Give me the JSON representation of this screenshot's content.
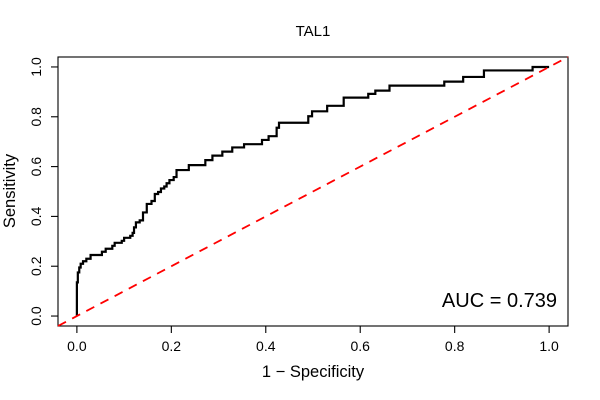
{
  "chart_data": {
    "type": "line",
    "subtype": "roc-step-curve",
    "title": "TAL1",
    "xlabel": "1 − Specificity",
    "ylabel": "Sensitivity",
    "annotation": "AUC = 0.739",
    "auc_value": 0.739,
    "xlim": [
      0,
      1
    ],
    "ylim": [
      0,
      1
    ],
    "axis_padding_frac": 0.04,
    "x_ticks": [
      "0.0",
      "0.2",
      "0.4",
      "0.6",
      "0.8",
      "1.0"
    ],
    "y_ticks": [
      "0.0",
      "0.2",
      "0.4",
      "0.6",
      "0.8",
      "1.0"
    ],
    "grid": false,
    "legend": null,
    "colors": {
      "curve": "#000000",
      "diagonal": "#FF0000",
      "axis": "#000000",
      "background": "#FFFFFF",
      "text": "#000000"
    },
    "series": [
      {
        "name": "ROC curve",
        "color": "#000000",
        "style": "solid",
        "line_width": 2.2,
        "step": "h-first",
        "points": [
          [
            0.0,
            0.0
          ],
          [
            0.0,
            0.135
          ],
          [
            0.002,
            0.175
          ],
          [
            0.005,
            0.195
          ],
          [
            0.008,
            0.21
          ],
          [
            0.013,
            0.22
          ],
          [
            0.02,
            0.23
          ],
          [
            0.029,
            0.245
          ],
          [
            0.053,
            0.258
          ],
          [
            0.061,
            0.27
          ],
          [
            0.075,
            0.282
          ],
          [
            0.08,
            0.294
          ],
          [
            0.095,
            0.302
          ],
          [
            0.1,
            0.314
          ],
          [
            0.113,
            0.322
          ],
          [
            0.118,
            0.334
          ],
          [
            0.121,
            0.356
          ],
          [
            0.125,
            0.376
          ],
          [
            0.133,
            0.384
          ],
          [
            0.14,
            0.416
          ],
          [
            0.148,
            0.45
          ],
          [
            0.158,
            0.462
          ],
          [
            0.165,
            0.49
          ],
          [
            0.172,
            0.498
          ],
          [
            0.178,
            0.512
          ],
          [
            0.185,
            0.52
          ],
          [
            0.19,
            0.533
          ],
          [
            0.196,
            0.546
          ],
          [
            0.205,
            0.558
          ],
          [
            0.211,
            0.586
          ],
          [
            0.237,
            0.606
          ],
          [
            0.272,
            0.626
          ],
          [
            0.287,
            0.644
          ],
          [
            0.308,
            0.66
          ],
          [
            0.329,
            0.677
          ],
          [
            0.354,
            0.69
          ],
          [
            0.392,
            0.707
          ],
          [
            0.406,
            0.722
          ],
          [
            0.423,
            0.756
          ],
          [
            0.428,
            0.776
          ],
          [
            0.49,
            0.802
          ],
          [
            0.498,
            0.822
          ],
          [
            0.53,
            0.844
          ],
          [
            0.565,
            0.877
          ],
          [
            0.617,
            0.892
          ],
          [
            0.632,
            0.905
          ],
          [
            0.662,
            0.925
          ],
          [
            0.778,
            0.941
          ],
          [
            0.818,
            0.96
          ],
          [
            0.862,
            0.986
          ],
          [
            0.965,
            1.0
          ],
          [
            1.0,
            1.0
          ]
        ]
      },
      {
        "name": "chance diagonal",
        "color": "#FF0000",
        "style": "dashed",
        "line_width": 1.8,
        "dash": "9 7",
        "spans_plot_corners": true,
        "points": [
          [
            0,
            0
          ],
          [
            1,
            1
          ]
        ]
      }
    ]
  }
}
